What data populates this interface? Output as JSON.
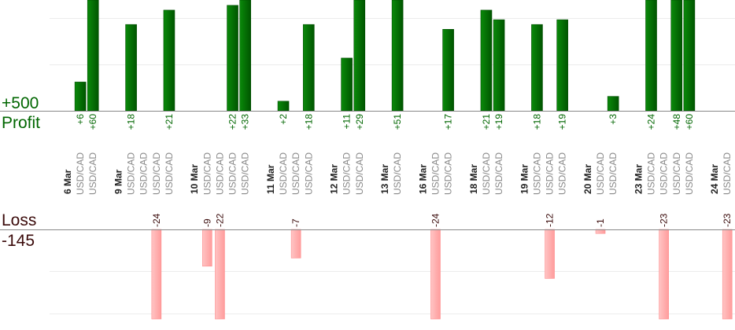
{
  "chart_data": {
    "type": "bar",
    "profit_panel": {
      "title": "Profit",
      "scale_label": "+500",
      "color": "#006600"
    },
    "loss_panel": {
      "title": "Loss",
      "scale_label": "-145",
      "color": "#3a0a0a"
    },
    "colors": {
      "profit_bar": "#006600",
      "loss_bar": "#ffaaaa",
      "instrument_text": "#888888",
      "date_text": "#222222"
    },
    "grid": true,
    "days": [
      {
        "date": "6 Mar",
        "trades": [
          {
            "pair": "USD/CAD",
            "value": 6,
            "label": "+6"
          },
          {
            "pair": "USD/CAD",
            "value": 60,
            "label": "+60"
          }
        ]
      },
      {
        "date": "9 Mar",
        "trades": [
          {
            "pair": "USD/CAD",
            "value": 18,
            "label": "+18"
          },
          {
            "pair": "USD/CAD",
            "value": null,
            "label": ""
          },
          {
            "pair": "USD/CAD",
            "value": -24,
            "label": "-24"
          },
          {
            "pair": "USD/CAD",
            "value": 21,
            "label": "+21"
          }
        ]
      },
      {
        "date": "10 Mar",
        "trades": [
          {
            "pair": "USD/CAD",
            "value": -9,
            "label": "-9"
          },
          {
            "pair": "USD/CAD",
            "value": -22,
            "label": "-22"
          },
          {
            "pair": "USD/CAD",
            "value": 22,
            "label": "+22"
          },
          {
            "pair": "USD/CAD",
            "value": 33,
            "label": "+33"
          }
        ]
      },
      {
        "date": "11 Mar",
        "trades": [
          {
            "pair": "USD/CAD",
            "value": 2,
            "label": "+2"
          },
          {
            "pair": "USD/CAD",
            "value": -7,
            "label": "-7"
          },
          {
            "pair": "USD/CAD",
            "value": 18,
            "label": "+18"
          }
        ]
      },
      {
        "date": "12 Mar",
        "trades": [
          {
            "pair": "USD/CAD",
            "value": 11,
            "label": "+11"
          },
          {
            "pair": "USD/CAD",
            "value": 29,
            "label": "+29"
          }
        ]
      },
      {
        "date": "13 Mar",
        "trades": [
          {
            "pair": "USD/CAD",
            "value": 51,
            "label": "+51"
          }
        ]
      },
      {
        "date": "16 Mar",
        "trades": [
          {
            "pair": "USD/CAD",
            "value": -24,
            "label": "-24"
          },
          {
            "pair": "USD/CAD",
            "value": 17,
            "label": "+17"
          }
        ]
      },
      {
        "date": "18 Mar",
        "trades": [
          {
            "pair": "USD/CAD",
            "value": 21,
            "label": "+21"
          },
          {
            "pair": "USD/CAD",
            "value": 19,
            "label": "+19"
          }
        ]
      },
      {
        "date": "19 Mar",
        "trades": [
          {
            "pair": "USD/CAD",
            "value": 18,
            "label": "+18"
          },
          {
            "pair": "USD/CAD",
            "value": -12,
            "label": "-12"
          },
          {
            "pair": "USD/CAD",
            "value": 19,
            "label": "+19"
          }
        ]
      },
      {
        "date": "20 Mar",
        "trades": [
          {
            "pair": "USD/CAD",
            "value": -1,
            "label": "-1"
          },
          {
            "pair": "USD/CAD",
            "value": 3,
            "label": "+3"
          }
        ]
      },
      {
        "date": "23 Mar",
        "trades": [
          {
            "pair": "USD/CAD",
            "value": 24,
            "label": "+24"
          },
          {
            "pair": "USD/CAD",
            "value": -23,
            "label": "-23"
          },
          {
            "pair": "USD/CAD",
            "value": 48,
            "label": "+48"
          },
          {
            "pair": "USD/CAD",
            "value": 60,
            "label": "+60"
          }
        ]
      },
      {
        "date": "24 Mar",
        "trades": [
          {
            "pair": "USD/CAD",
            "value": -23,
            "label": "-23"
          }
        ]
      }
    ]
  }
}
